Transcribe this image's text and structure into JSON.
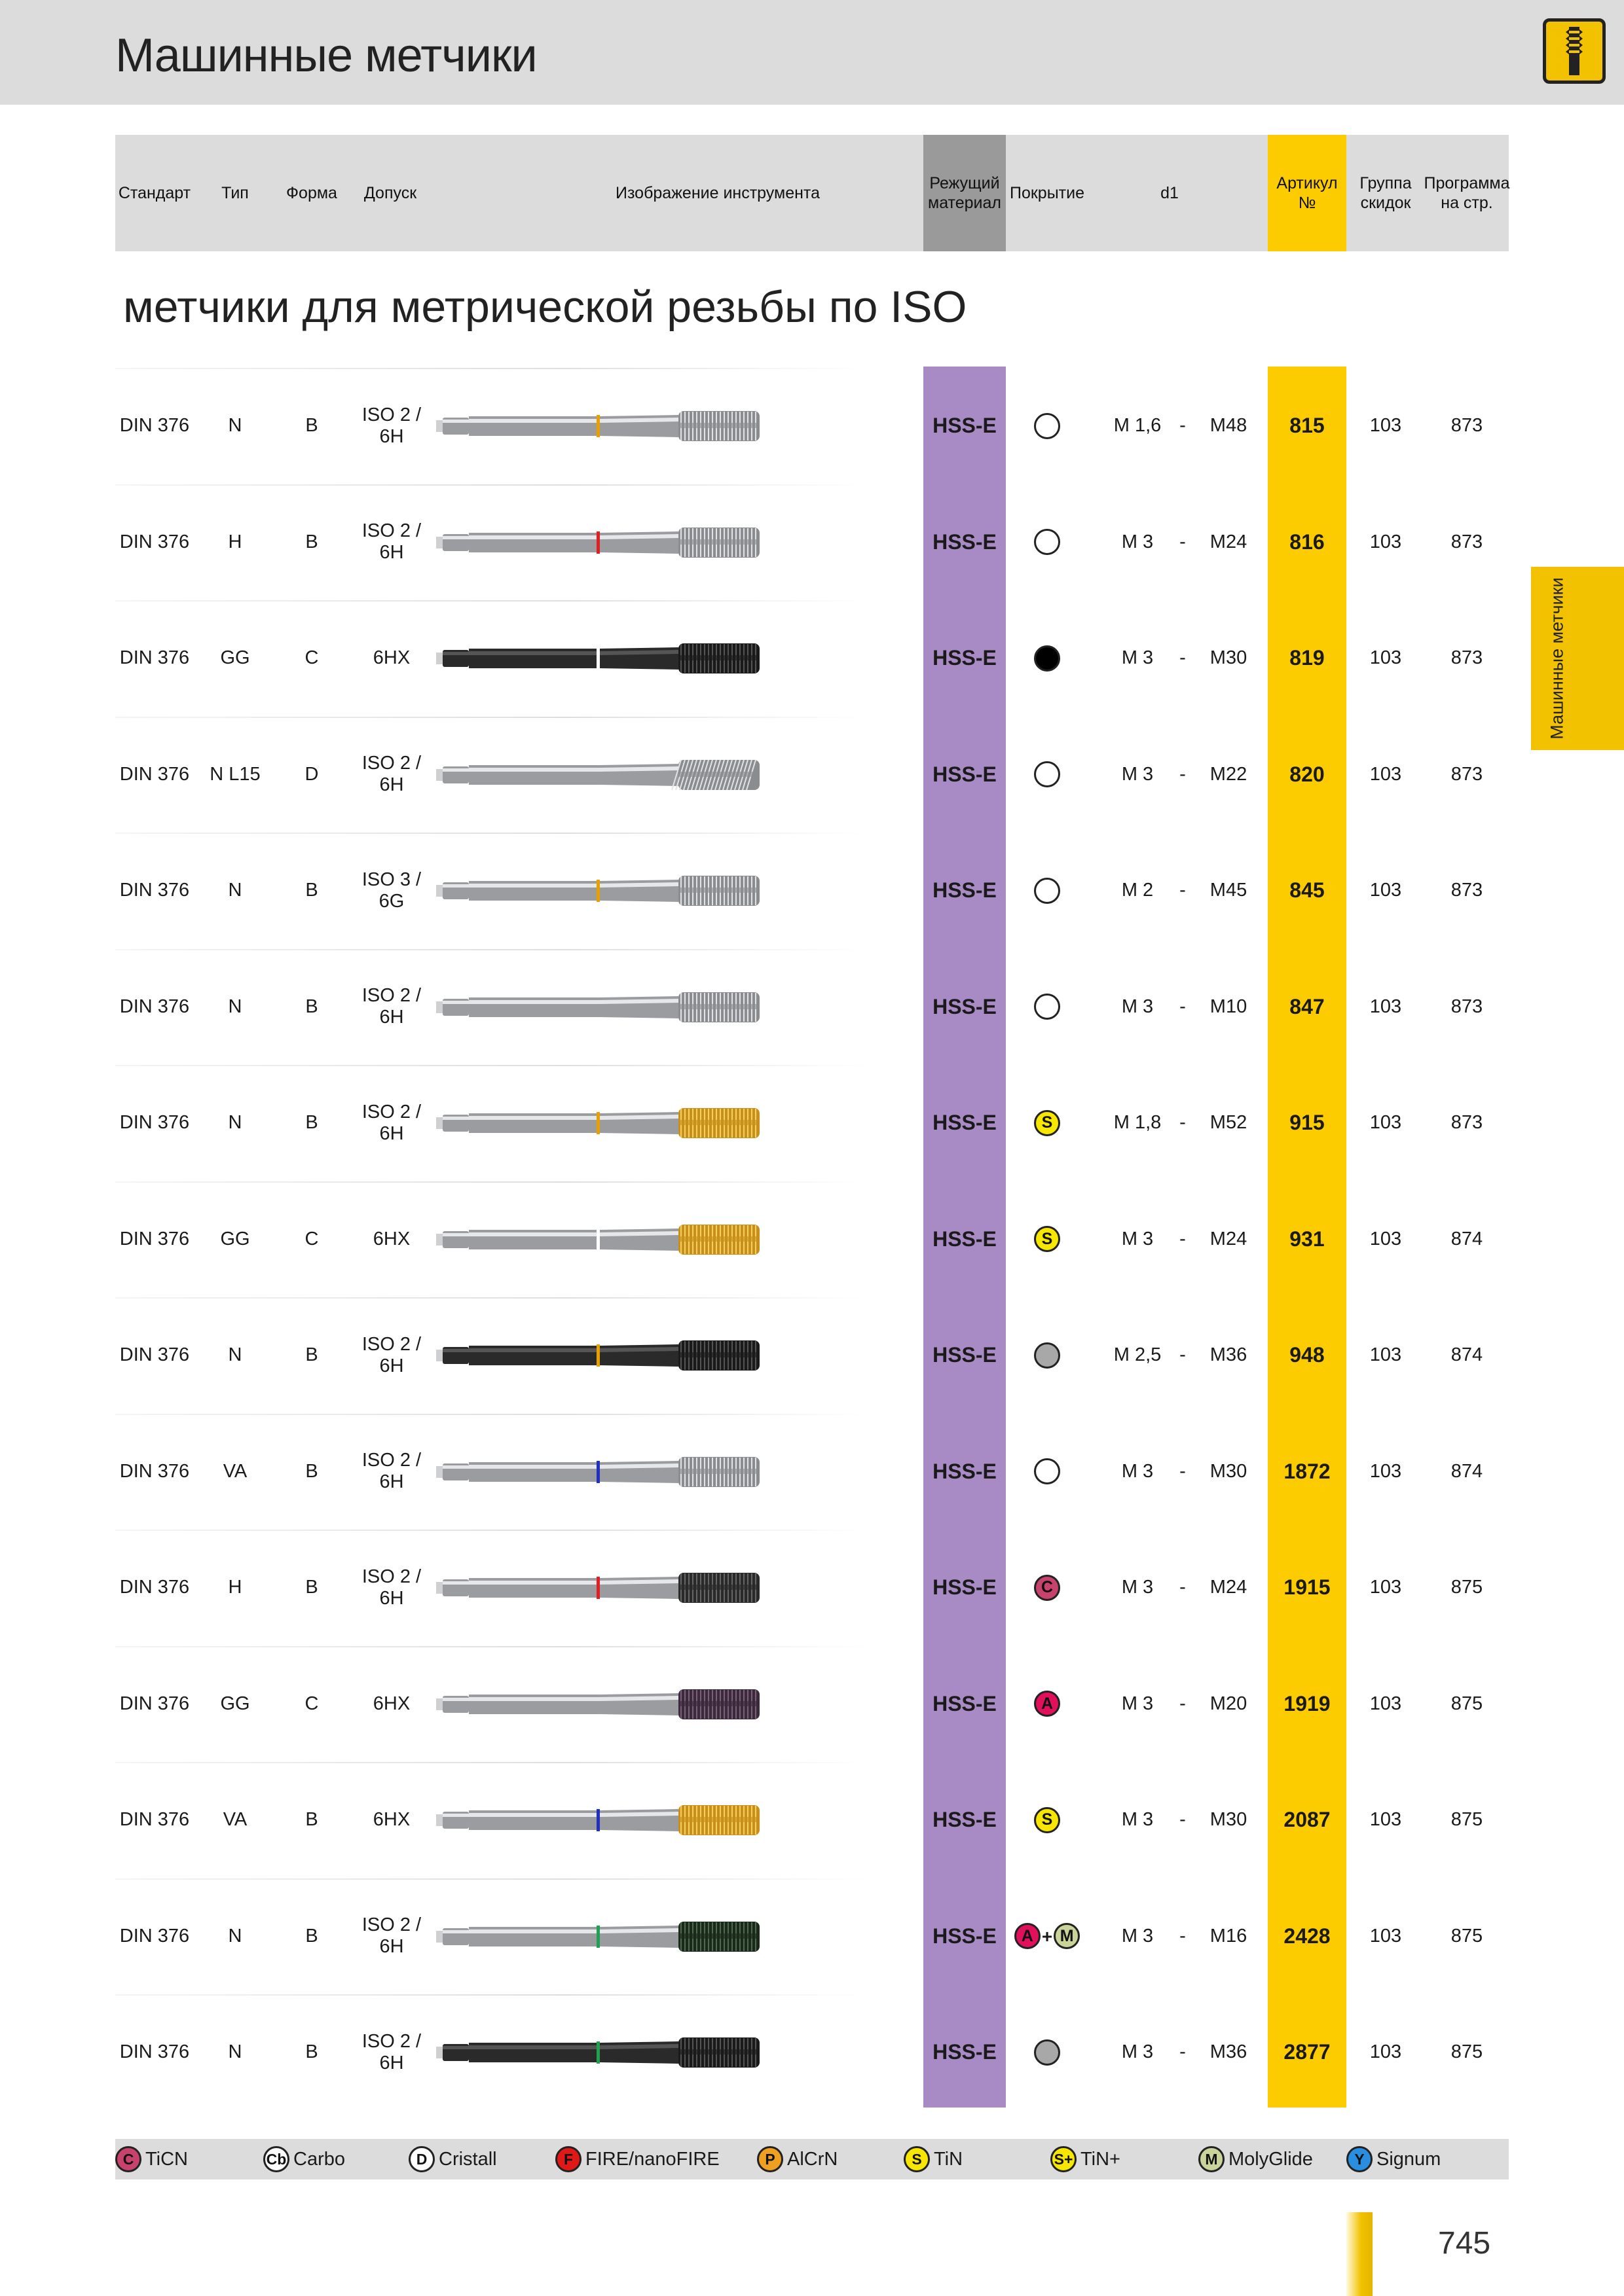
{
  "page_title": "Машинные метчики",
  "side_tab": "Машинные метчики",
  "section_title": "метчики для метрической резьбы по  ISO",
  "page_number": "745",
  "header": {
    "standard": "Стандарт",
    "type": "Тип",
    "form": "Форма",
    "tolerance": "Допуск",
    "image": "Изображение инструмента",
    "material": "Режущий материал",
    "coating": "Покрытие",
    "d1": "d1",
    "article": "Артикул №",
    "discount_group": "Группа скидок",
    "program": "Программа на стр."
  },
  "rows": [
    {
      "standard": "DIN 376",
      "type": "N",
      "form": "B",
      "tolerance": "ISO 2 / 6H",
      "material": "HSS-E",
      "coating": [
        "none"
      ],
      "d1_from": "M 1,6",
      "dash": "-",
      "d1_to": "M48",
      "article": "815",
      "group": "103",
      "page": "873",
      "tool": {
        "body": "bright",
        "ring": "#e8a000",
        "thread": "bright",
        "shape": "straight"
      }
    },
    {
      "standard": "DIN 376",
      "type": "H",
      "form": "B",
      "tolerance": "ISO 2 / 6H",
      "material": "HSS-E",
      "coating": [
        "none"
      ],
      "d1_from": "M 3",
      "dash": "-",
      "d1_to": "M24",
      "article": "816",
      "group": "103",
      "page": "873",
      "tool": {
        "body": "bright",
        "ring": "#e02020",
        "thread": "bright",
        "shape": "straight"
      }
    },
    {
      "standard": "DIN 376",
      "type": "GG",
      "form": "C",
      "tolerance": "6HX",
      "material": "HSS-E",
      "coating": [
        "black"
      ],
      "d1_from": "M 3",
      "dash": "-",
      "d1_to": "M30",
      "article": "819",
      "group": "103",
      "page": "873",
      "tool": {
        "body": "black",
        "ring": "#ffffff",
        "thread": "black",
        "shape": "straight"
      }
    },
    {
      "standard": "DIN 376",
      "type": "N L15",
      "form": "D",
      "tolerance": "ISO 2 / 6H",
      "material": "HSS-E",
      "coating": [
        "none"
      ],
      "d1_from": "M 3",
      "dash": "-",
      "d1_to": "M22",
      "article": "820",
      "group": "103",
      "page": "873",
      "tool": {
        "body": "bright",
        "ring": "none",
        "thread": "bright",
        "shape": "spiral"
      }
    },
    {
      "standard": "DIN 376",
      "type": "N",
      "form": "B",
      "tolerance": "ISO 3 / 6G",
      "material": "HSS-E",
      "coating": [
        "none"
      ],
      "d1_from": "M 2",
      "dash": "-",
      "d1_to": "M45",
      "article": "845",
      "group": "103",
      "page": "873",
      "tool": {
        "body": "bright",
        "ring": "#e8a000",
        "thread": "bright",
        "shape": "straight"
      }
    },
    {
      "standard": "DIN 376",
      "type": "N",
      "form": "B",
      "tolerance": "ISO 2 / 6H",
      "material": "HSS-E",
      "coating": [
        "none"
      ],
      "d1_from": "M 3",
      "dash": "-",
      "d1_to": "M10",
      "article": "847",
      "group": "103",
      "page": "873",
      "tool": {
        "body": "bright",
        "ring": "none",
        "thread": "bright",
        "shape": "straight"
      }
    },
    {
      "standard": "DIN 376",
      "type": "N",
      "form": "B",
      "tolerance": "ISO 2 / 6H",
      "material": "HSS-E",
      "coating": [
        "S"
      ],
      "d1_from": "M 1,8",
      "dash": "-",
      "d1_to": "M52",
      "article": "915",
      "group": "103",
      "page": "873",
      "tool": {
        "body": "bright",
        "ring": "#e8a000",
        "thread": "gold",
        "shape": "straight"
      }
    },
    {
      "standard": "DIN 376",
      "type": "GG",
      "form": "C",
      "tolerance": "6HX",
      "material": "HSS-E",
      "coating": [
        "S"
      ],
      "d1_from": "M 3",
      "dash": "-",
      "d1_to": "M24",
      "article": "931",
      "group": "103",
      "page": "874",
      "tool": {
        "body": "bright",
        "ring": "#ffffff",
        "thread": "gold",
        "shape": "straight"
      }
    },
    {
      "standard": "DIN 376",
      "type": "N",
      "form": "B",
      "tolerance": "ISO 2 / 6H",
      "material": "HSS-E",
      "coating": [
        "grey"
      ],
      "d1_from": "M 2,5",
      "dash": "-",
      "d1_to": "M36",
      "article": "948",
      "group": "103",
      "page": "874",
      "tool": {
        "body": "black",
        "ring": "#e8a000",
        "thread": "black",
        "shape": "straight"
      }
    },
    {
      "standard": "DIN 376",
      "type": "VA",
      "form": "B",
      "tolerance": "ISO 2 / 6H",
      "material": "HSS-E",
      "coating": [
        "none"
      ],
      "d1_from": "M 3",
      "dash": "-",
      "d1_to": "M30",
      "article": "1872",
      "group": "103",
      "page": "874",
      "tool": {
        "body": "bright",
        "ring": "#2030c0",
        "thread": "bright",
        "shape": "straight"
      }
    },
    {
      "standard": "DIN 376",
      "type": "H",
      "form": "B",
      "tolerance": "ISO 2 / 6H",
      "material": "HSS-E",
      "coating": [
        "C"
      ],
      "d1_from": "M 3",
      "dash": "-",
      "d1_to": "M24",
      "article": "1915",
      "group": "103",
      "page": "875",
      "tool": {
        "body": "bright",
        "ring": "#e02020",
        "thread": "dark",
        "shape": "straight"
      }
    },
    {
      "standard": "DIN 376",
      "type": "GG",
      "form": "C",
      "tolerance": "6HX",
      "material": "HSS-E",
      "coating": [
        "A"
      ],
      "d1_from": "M 3",
      "dash": "-",
      "d1_to": "M20",
      "article": "1919",
      "group": "103",
      "page": "875",
      "tool": {
        "body": "bright",
        "ring": "none",
        "thread": "violet",
        "shape": "straight"
      }
    },
    {
      "standard": "DIN 376",
      "type": "VA",
      "form": "B",
      "tolerance": "6HX",
      "material": "HSS-E",
      "coating": [
        "S"
      ],
      "d1_from": "M 3",
      "dash": "-",
      "d1_to": "M30",
      "article": "2087",
      "group": "103",
      "page": "875",
      "tool": {
        "body": "bright",
        "ring": "#2030c0",
        "thread": "gold",
        "shape": "straight"
      }
    },
    {
      "standard": "DIN 376",
      "type": "N",
      "form": "B",
      "tolerance": "ISO 2 / 6H",
      "material": "HSS-E",
      "coating": [
        "A",
        "+",
        "M"
      ],
      "d1_from": "M 3",
      "dash": "-",
      "d1_to": "M16",
      "article": "2428",
      "group": "103",
      "page": "875",
      "tool": {
        "body": "bright",
        "ring": "#20a050",
        "thread": "green",
        "shape": "straight"
      }
    },
    {
      "standard": "DIN 376",
      "type": "N",
      "form": "B",
      "tolerance": "ISO 2 / 6H",
      "material": "HSS-E",
      "coating": [
        "grey"
      ],
      "d1_from": "M 3",
      "dash": "-",
      "d1_to": "M36",
      "article": "2877",
      "group": "103",
      "page": "875",
      "tool": {
        "body": "black",
        "ring": "#20a050",
        "thread": "black",
        "shape": "straight"
      }
    }
  ],
  "coating_styles": {
    "C": {
      "bg": "#c8426e",
      "fg": "#111111"
    },
    "A": {
      "bg": "#e0105a",
      "fg": "#111111"
    },
    "M": {
      "bg": "#c9d39a",
      "fg": "#111111"
    },
    "S": {
      "bg": "#f7e600",
      "fg": "#111111"
    },
    "Cb": {
      "bg": "#ffffff",
      "fg": "#111111"
    },
    "D": {
      "bg": "#ffffff",
      "fg": "#111111"
    },
    "F": {
      "bg": "#e01818",
      "fg": "#111111"
    },
    "P": {
      "bg": "#f0a020",
      "fg": "#111111"
    },
    "S+": {
      "bg": "#f7e600",
      "fg": "#111111"
    },
    "Y": {
      "bg": "#2a8ee0",
      "fg": "#111111"
    },
    "black": {
      "bg": "#000000",
      "fg": "#000000"
    },
    "grey": {
      "bg": "#a8a8a8",
      "fg": "#111111"
    },
    "none": {
      "bg": "#ffffff",
      "fg": "#111111"
    }
  },
  "legend": [
    {
      "symbol": "C",
      "label": "TiCN"
    },
    {
      "symbol": "Cb",
      "label": "Carbo"
    },
    {
      "symbol": "D",
      "label": "Cristall"
    },
    {
      "symbol": "F",
      "label": "FIRE/nanoFIRE"
    },
    {
      "symbol": "P",
      "label": "AlCrN"
    },
    {
      "symbol": "S",
      "label": "TiN"
    },
    {
      "symbol": "S+",
      "label": "TiN+"
    },
    {
      "symbol": "M",
      "label": "MolyGlide"
    },
    {
      "symbol": "Y",
      "label": "Signum"
    }
  ]
}
